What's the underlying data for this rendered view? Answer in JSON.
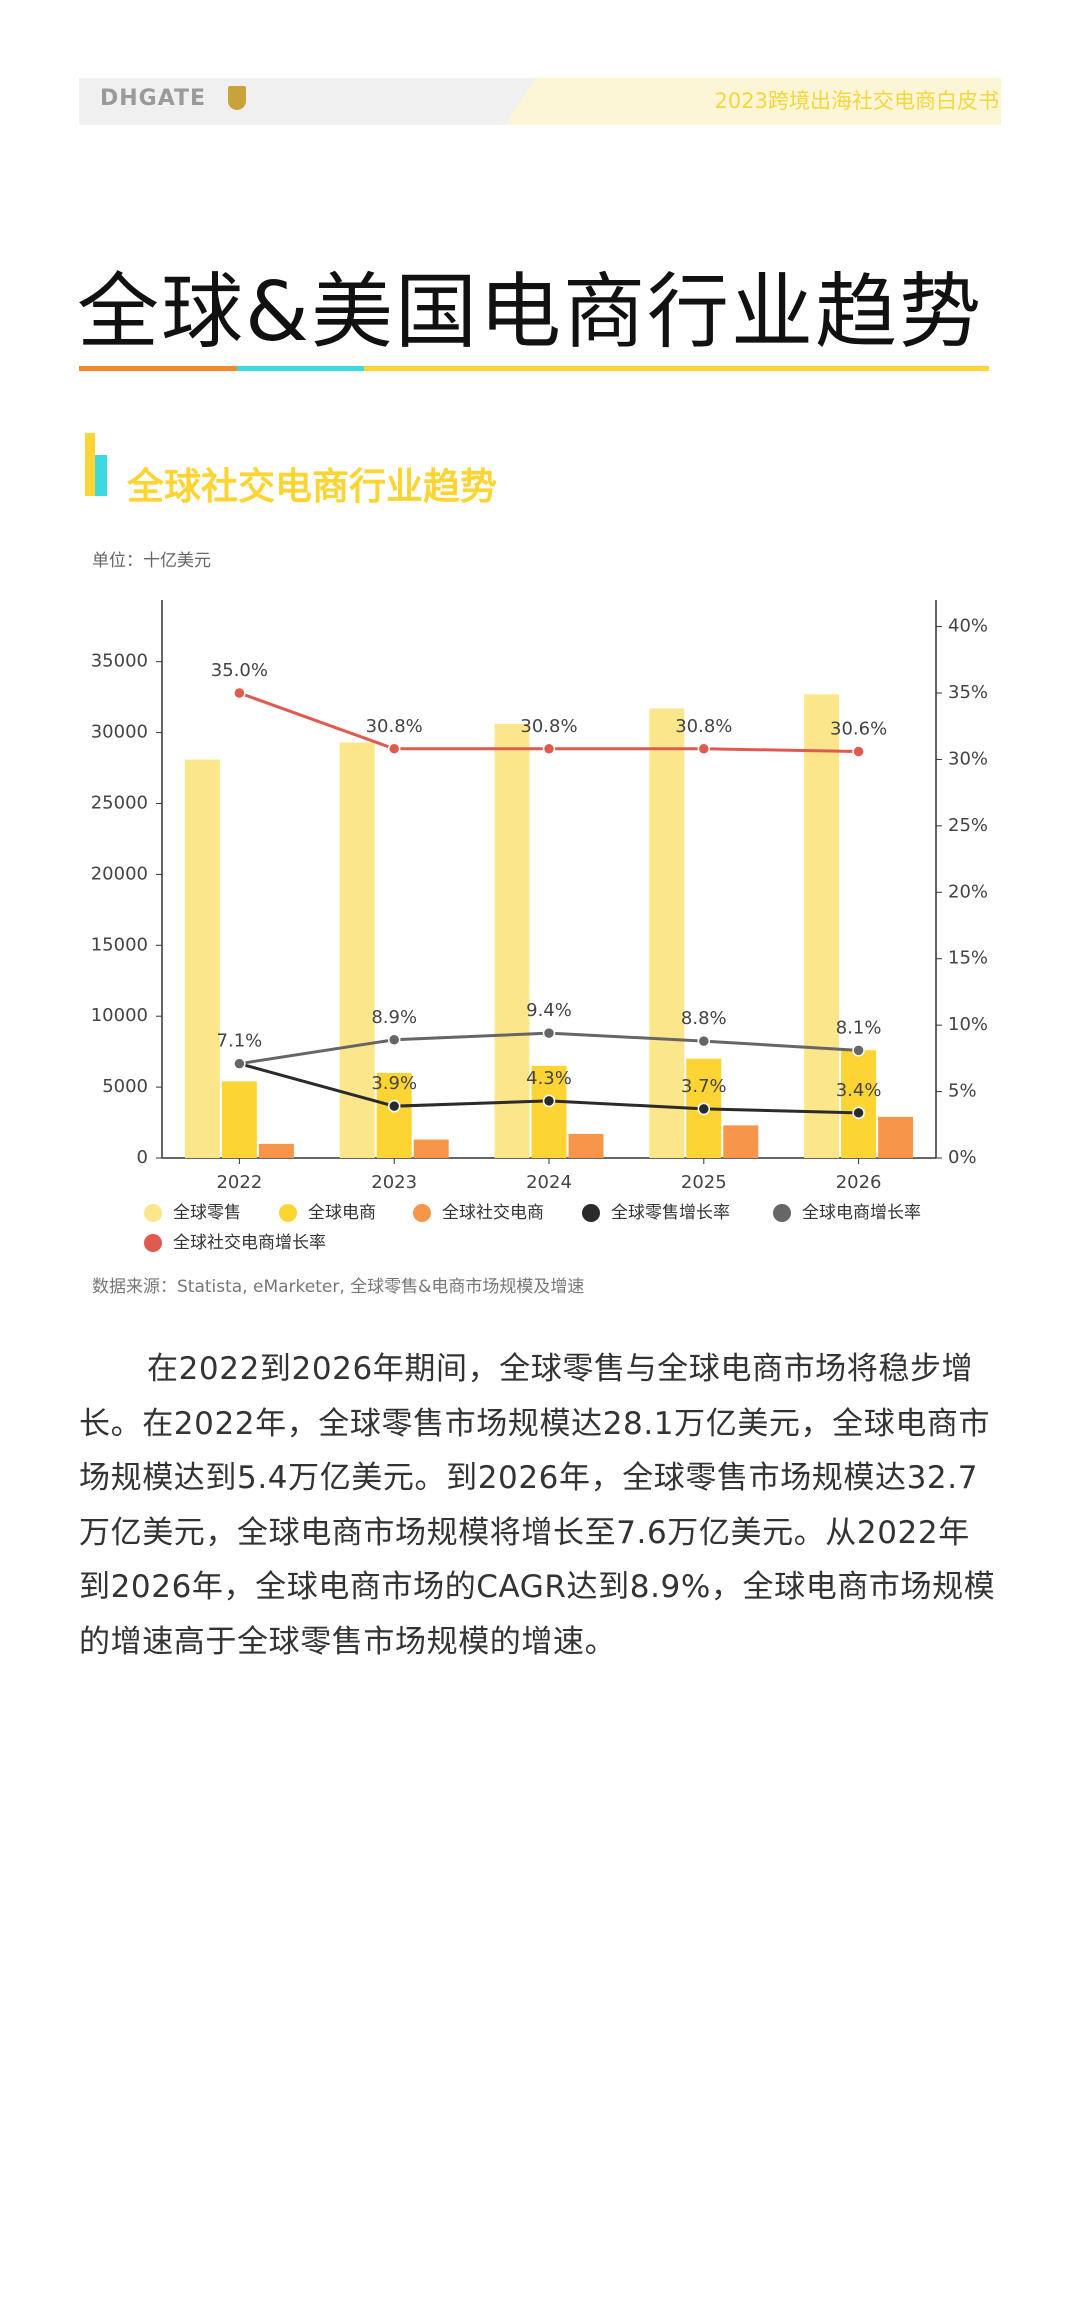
{
  "header": {
    "logo": "DHGATE",
    "title": "2023跨境出海社交电商白皮书"
  },
  "title": "全球&美国电商行业趋势",
  "section_title": "全球社交电商行业趋势",
  "chart_data": {
    "type": "bar_line",
    "unit_label": "单位：十亿美元",
    "source": "数据来源：Statista, eMarketer, 全球零售&电商市场规模及增速",
    "categories": [
      "2022",
      "2023",
      "2024",
      "2025",
      "2026"
    ],
    "ylim": [
      0,
      39350
    ],
    "yticks": [
      0,
      5000,
      10000,
      15000,
      20000,
      25000,
      30000,
      35000
    ],
    "y2lim": [
      0,
      42
    ],
    "y2ticks": [
      {
        "value": 0,
        "label": "0%"
      },
      {
        "value": 5,
        "label": "5%"
      },
      {
        "value": 10,
        "label": "10%"
      },
      {
        "value": 15,
        "label": "15%"
      },
      {
        "value": 20,
        "label": "20%"
      },
      {
        "value": 25,
        "label": "25%"
      },
      {
        "value": 30,
        "label": "30%"
      },
      {
        "value": 35,
        "label": "35%"
      },
      {
        "value": 40,
        "label": "40%"
      }
    ],
    "series": [
      {
        "name": "全球零售",
        "kind": "bar",
        "color": "#fce68c",
        "values": [
          28100,
          29300,
          30600,
          31700,
          32700
        ]
      },
      {
        "name": "全球电商",
        "kind": "bar",
        "color": "#fcd535",
        "values": [
          5400,
          6000,
          6500,
          7000,
          7600
        ]
      },
      {
        "name": "全球社交电商",
        "kind": "bar",
        "color": "#f7964a",
        "values": [
          1000,
          1300,
          1700,
          2300,
          2900
        ]
      },
      {
        "name": "全球零售增长率",
        "kind": "line",
        "axis": "y2",
        "color": "#2b2b2b",
        "values": [
          7.1,
          3.9,
          4.3,
          3.7,
          3.4
        ],
        "value_labels": [
          "7.1%",
          "3.9%",
          "4.3%",
          "3.7%",
          "3.4%"
        ]
      },
      {
        "name": "全球电商增长率",
        "kind": "line",
        "axis": "y2",
        "color": "#666666",
        "values": [
          7.1,
          8.9,
          9.4,
          8.8,
          8.1
        ],
        "value_labels": [
          null,
          "8.9%",
          "9.4%",
          "8.8%",
          "8.1%"
        ]
      },
      {
        "name": "全球社交电商增长率",
        "kind": "line",
        "axis": "y2",
        "color": "#e05a4f",
        "values": [
          35,
          30.8,
          30.8,
          30.8,
          30.6
        ],
        "value_labels": [
          "35.0%",
          "30.8%",
          "30.8%",
          "30.8%",
          "30.6%"
        ]
      }
    ]
  },
  "body": {
    "paragraph": "在2022到2026年期间，全球零售与全球电商市场将稳步增长。在2022年，全球零售市场规模达28.1万亿美元，全球电商市场规模达到5.4万亿美元。到2026年，全球零售市场规模达32.7万亿美元，全球电商市场规模将增长至7.6万亿美元。从2022年到2026年，全球电商市场的CAGR达到8.9%，全球电商市场规模的增速高于全球零售市场规模的增速。"
  }
}
